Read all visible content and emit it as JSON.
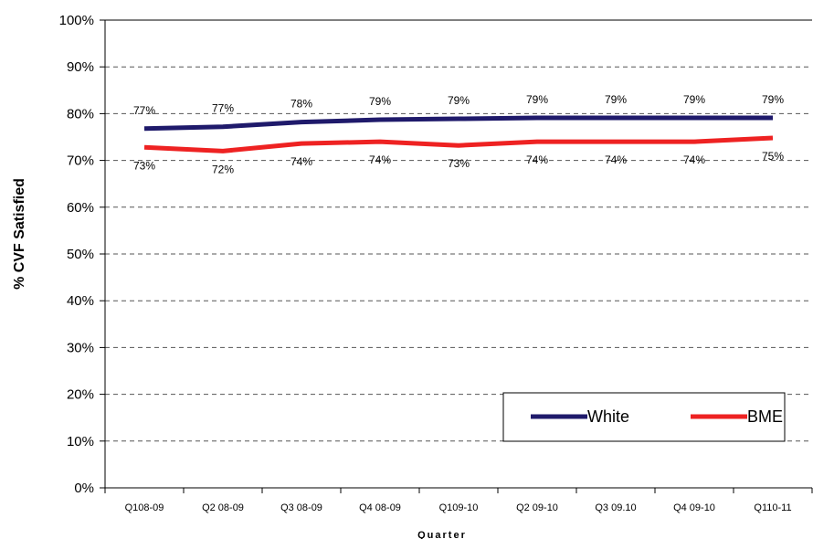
{
  "chart_data": {
    "type": "line",
    "title": "",
    "xlabel": "Quarter",
    "ylabel": "% CVF Satisfied",
    "categories": [
      "Q108-09",
      "Q2 08-09",
      "Q3 08-09",
      "Q4 08-09",
      "Q109-10",
      "Q2 09-10",
      "Q3 09.10",
      "Q4 09-10",
      "Q110-11"
    ],
    "ylim": [
      0,
      100
    ],
    "y_ticks": [
      0,
      10,
      20,
      30,
      40,
      50,
      60,
      70,
      80,
      90,
      100
    ],
    "y_tick_labels": [
      "0%",
      "10%",
      "20%",
      "30%",
      "40%",
      "50%",
      "60%",
      "70%",
      "80%",
      "90%",
      "100%"
    ],
    "grid": "horizontal dashed",
    "legend_position": "bottom-right",
    "series": [
      {
        "name": "White",
        "color": "#1f1a6b",
        "values": [
          76.8,
          77.2,
          78.2,
          78.7,
          78.9,
          79.1,
          79.1,
          79.1,
          79.1
        ],
        "labels": [
          "77%",
          "77%",
          "78%",
          "79%",
          "79%",
          "79%",
          "79%",
          "79%",
          "79%"
        ]
      },
      {
        "name": "BME",
        "color": "#ee2222",
        "values": [
          72.8,
          72.0,
          73.6,
          74.0,
          73.2,
          74.0,
          74.0,
          74.0,
          74.8
        ],
        "labels": [
          "73%",
          "72%",
          "74%",
          "74%",
          "73%",
          "74%",
          "74%",
          "74%",
          "75%"
        ]
      }
    ]
  }
}
